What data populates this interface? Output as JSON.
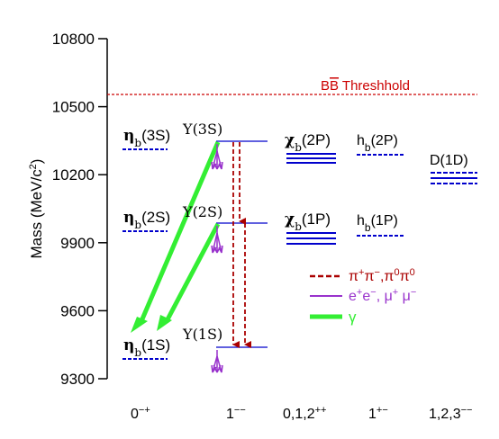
{
  "chart_data": {
    "type": "energy-level-diagram",
    "title": "",
    "ylabel": "Mass (MeV/c2)",
    "ylim": [
      9300,
      10800
    ],
    "yticks": [
      "10800",
      "10500",
      "10200",
      "9900",
      "9600",
      "9300"
    ],
    "threshold": {
      "label": "BB Threshhold",
      "mass": 10560
    },
    "columns": [
      "0-+",
      "1--",
      "0,1,2++",
      "1+-",
      "1,2,3--"
    ],
    "states": {
      "eta3s": "ηb(3S)",
      "eta2s": "ηb(2S)",
      "eta1s": "ηb(1S)",
      "ups3s": "Υ(3S)",
      "ups2s": "Υ(2S)",
      "ups1s": "Υ(1S)",
      "chi2p": "χb(2P)",
      "chi1p": "χb(1P)",
      "hb2p": "hb(2P)",
      "hb1p": "hb(1P)",
      "d1d": "D(1D)"
    },
    "legend": [
      "π+π-, π0π0",
      "e+e-, μ+μ-",
      "γ"
    ],
    "colors": {
      "levels": "#0000cc",
      "threshold": "#cc0000",
      "pipi": "#aa0000",
      "leptons": "#9933cc",
      "gamma": "#33ee33"
    }
  }
}
